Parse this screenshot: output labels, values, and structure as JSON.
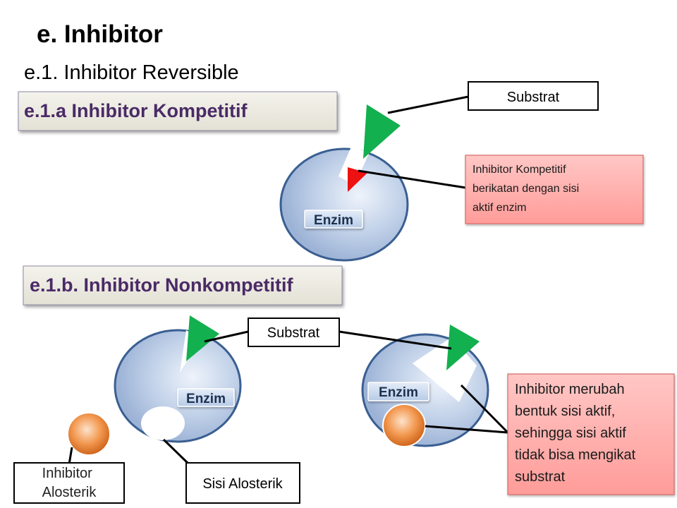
{
  "title": "e. Inhibitor",
  "subtitle": "e.1. Inhibitor Reversible",
  "section_kompetitif": {
    "heading": "e.1.a Inhibitor Kompetitif",
    "enzyme_label": "Enzim",
    "substrate_label": "Substrat",
    "inhibitor_note": [
      "Inhibitor Kompetitif",
      "berikatan dengan sisi",
      "aktif enzim"
    ]
  },
  "section_nonkompetitif": {
    "heading": "e.1.b. Inhibitor Nonkompetitif",
    "enzyme_left_label": "Enzim",
    "enzyme_right_label": "Enzim",
    "substrate_label": "Substrat",
    "inhibitor_label": [
      "Inhibitor",
      "Alosterik"
    ],
    "allosteric_site_label": "Sisi Alosterik",
    "effect_note": [
      "Inhibitor merubah",
      "bentuk sisi aktif,",
      "sehingga sisi aktif",
      "tidak bisa mengikat",
      "substrat"
    ]
  },
  "colors": {
    "heading_text": "#4a2a66",
    "heading_band": "#ecebe2",
    "enzyme_fill": "#bccde6",
    "enzyme_stroke": "#3a5f92",
    "substrate": "#12b04e",
    "inhibitor_competitive": "#ee1111",
    "inhibitor_allosteric": "#e8731c",
    "note_fill": "#ffb0ae"
  }
}
